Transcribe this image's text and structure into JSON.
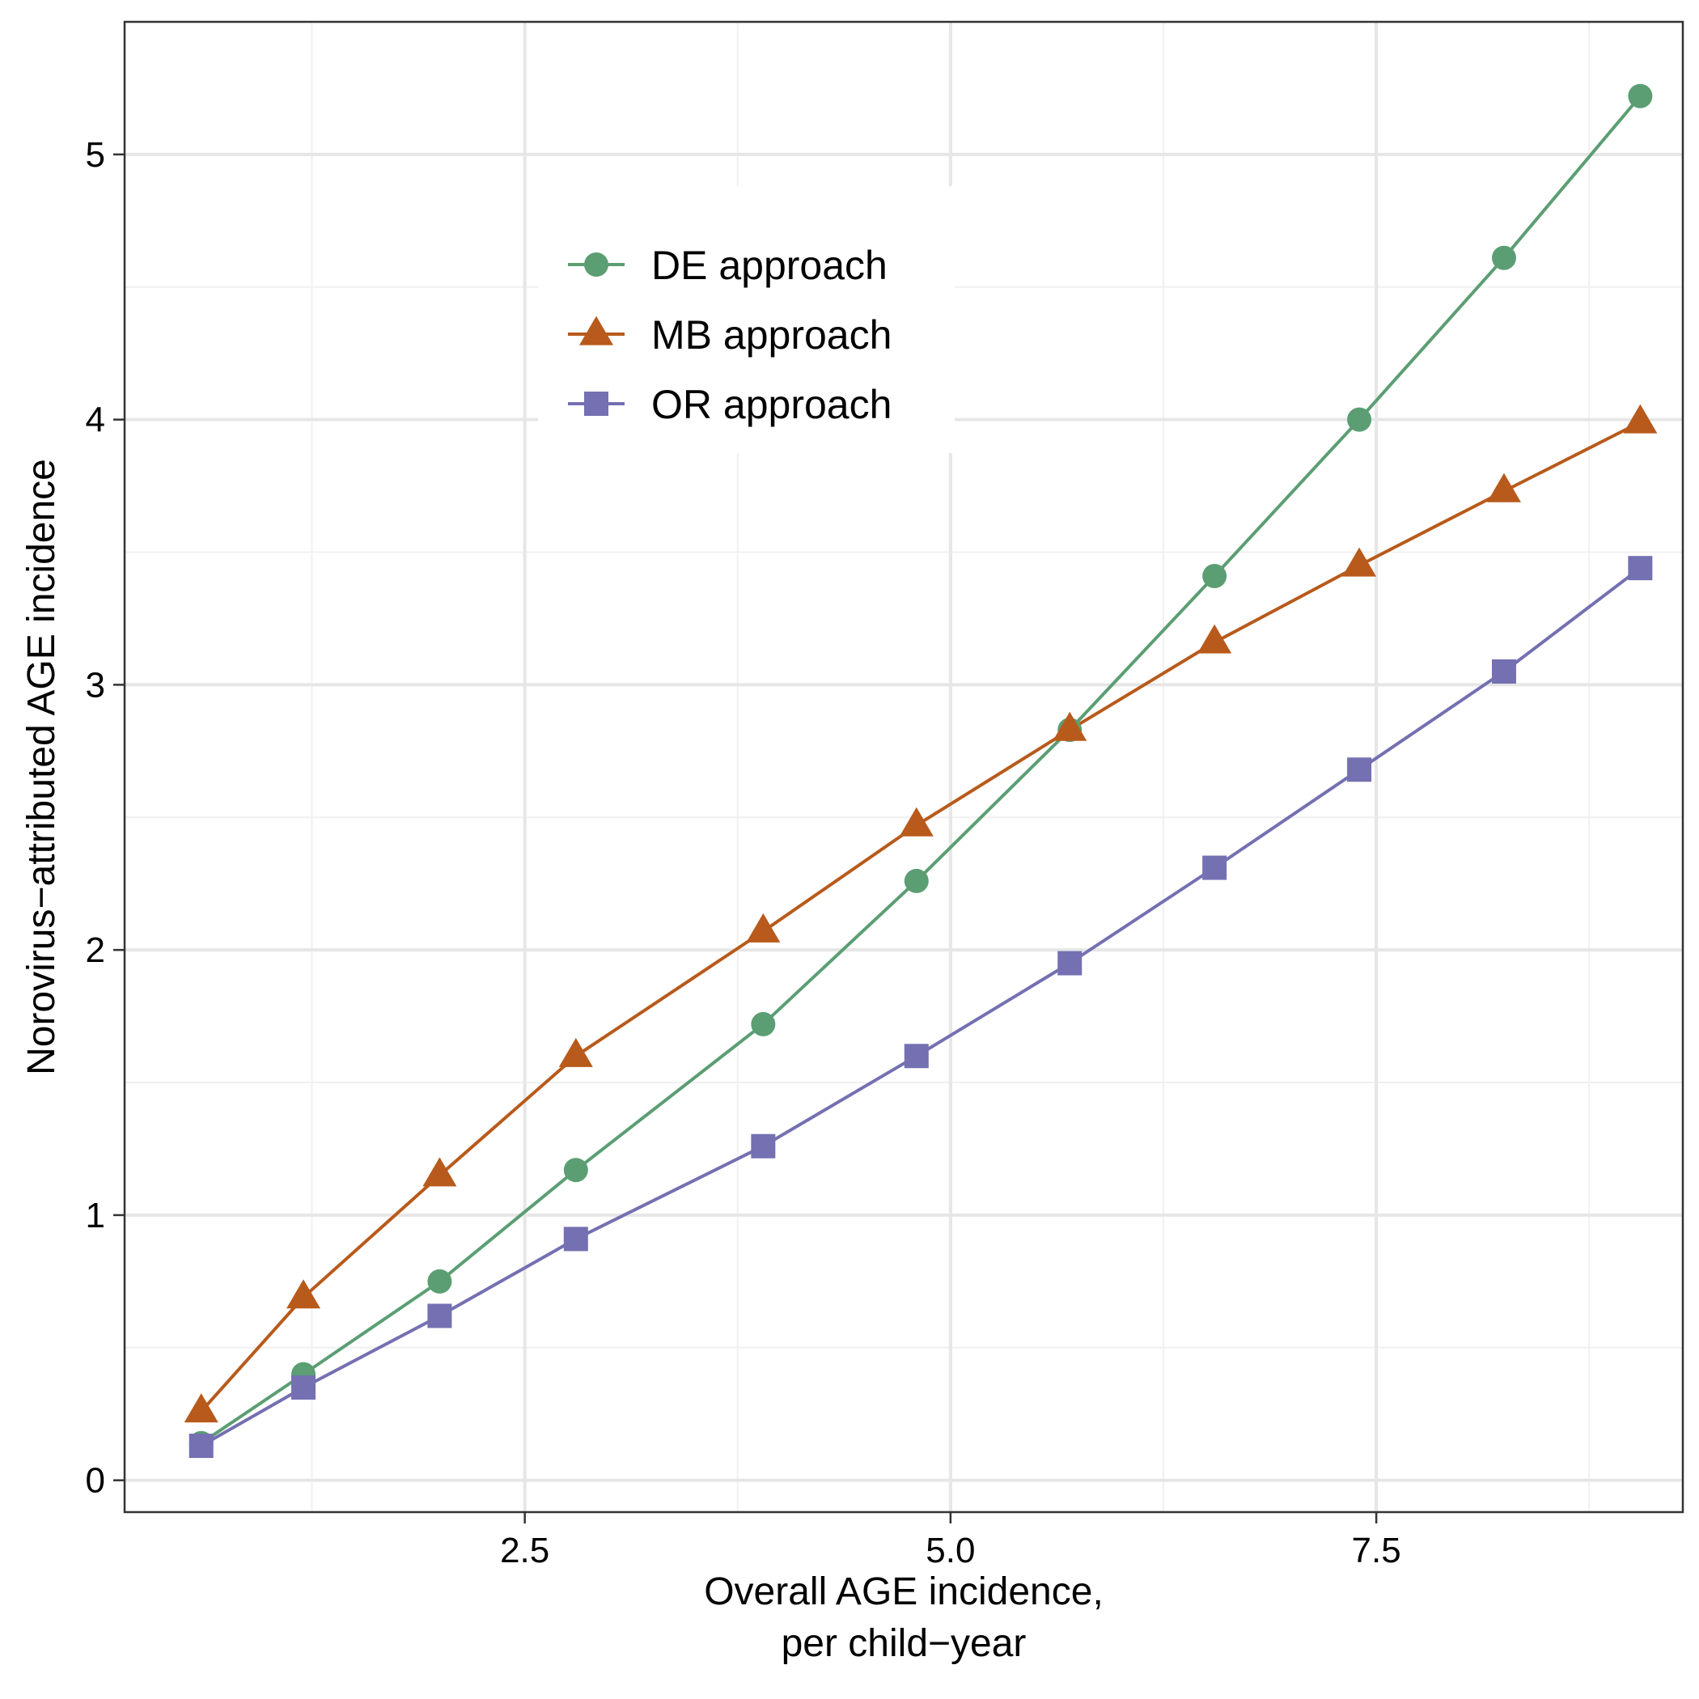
{
  "chart_data": {
    "type": "line",
    "xlabel": [
      "Overall AGE incidence,",
      "per child−year"
    ],
    "ylabel": "Norovirus−attributed AGE incidence",
    "xlim": [
      0.15,
      9.3
    ],
    "ylim": [
      -0.12,
      5.5
    ],
    "x_ticks": [
      {
        "value": 2.5,
        "label": "2.5"
      },
      {
        "value": 5.0,
        "label": "5.0"
      },
      {
        "value": 7.5,
        "label": "7.5"
      }
    ],
    "y_ticks": [
      {
        "value": 0,
        "label": "0"
      },
      {
        "value": 1,
        "label": "1"
      },
      {
        "value": 2,
        "label": "2"
      },
      {
        "value": 3,
        "label": "3"
      },
      {
        "value": 4,
        "label": "4"
      },
      {
        "value": 5,
        "label": "5"
      }
    ],
    "x_minor_grid": [
      1.25,
      3.75,
      6.25,
      8.75
    ],
    "y_minor_grid": [
      0.5,
      1.5,
      2.5,
      3.5,
      4.5
    ],
    "grid": true,
    "legend_position": "top-center",
    "series": [
      {
        "name": "DE approach",
        "marker": "circle",
        "color": "#5B9E73",
        "x": [
          0.6,
          1.2,
          2.0,
          2.8,
          3.9,
          4.8,
          5.7,
          6.55,
          7.4,
          8.25,
          9.05
        ],
        "y": [
          0.14,
          0.4,
          0.75,
          1.17,
          1.72,
          2.26,
          2.83,
          3.41,
          4.0,
          4.61,
          5.22
        ]
      },
      {
        "name": "MB approach",
        "marker": "triangle",
        "color": "#B85A1B",
        "x": [
          0.6,
          1.2,
          2.0,
          2.8,
          3.9,
          4.8,
          5.7,
          6.55,
          7.4,
          8.25,
          9.05
        ],
        "y": [
          0.26,
          0.69,
          1.15,
          1.6,
          2.07,
          2.47,
          2.83,
          3.16,
          3.45,
          3.73,
          3.99
        ]
      },
      {
        "name": "OR approach",
        "marker": "square",
        "color": "#7470B2",
        "x": [
          0.6,
          1.2,
          2.0,
          2.8,
          3.9,
          4.8,
          5.7,
          6.55,
          7.4,
          8.25,
          9.05
        ],
        "y": [
          0.13,
          0.35,
          0.62,
          0.91,
          1.26,
          1.6,
          1.95,
          2.31,
          2.68,
          3.05,
          3.44
        ]
      }
    ]
  }
}
